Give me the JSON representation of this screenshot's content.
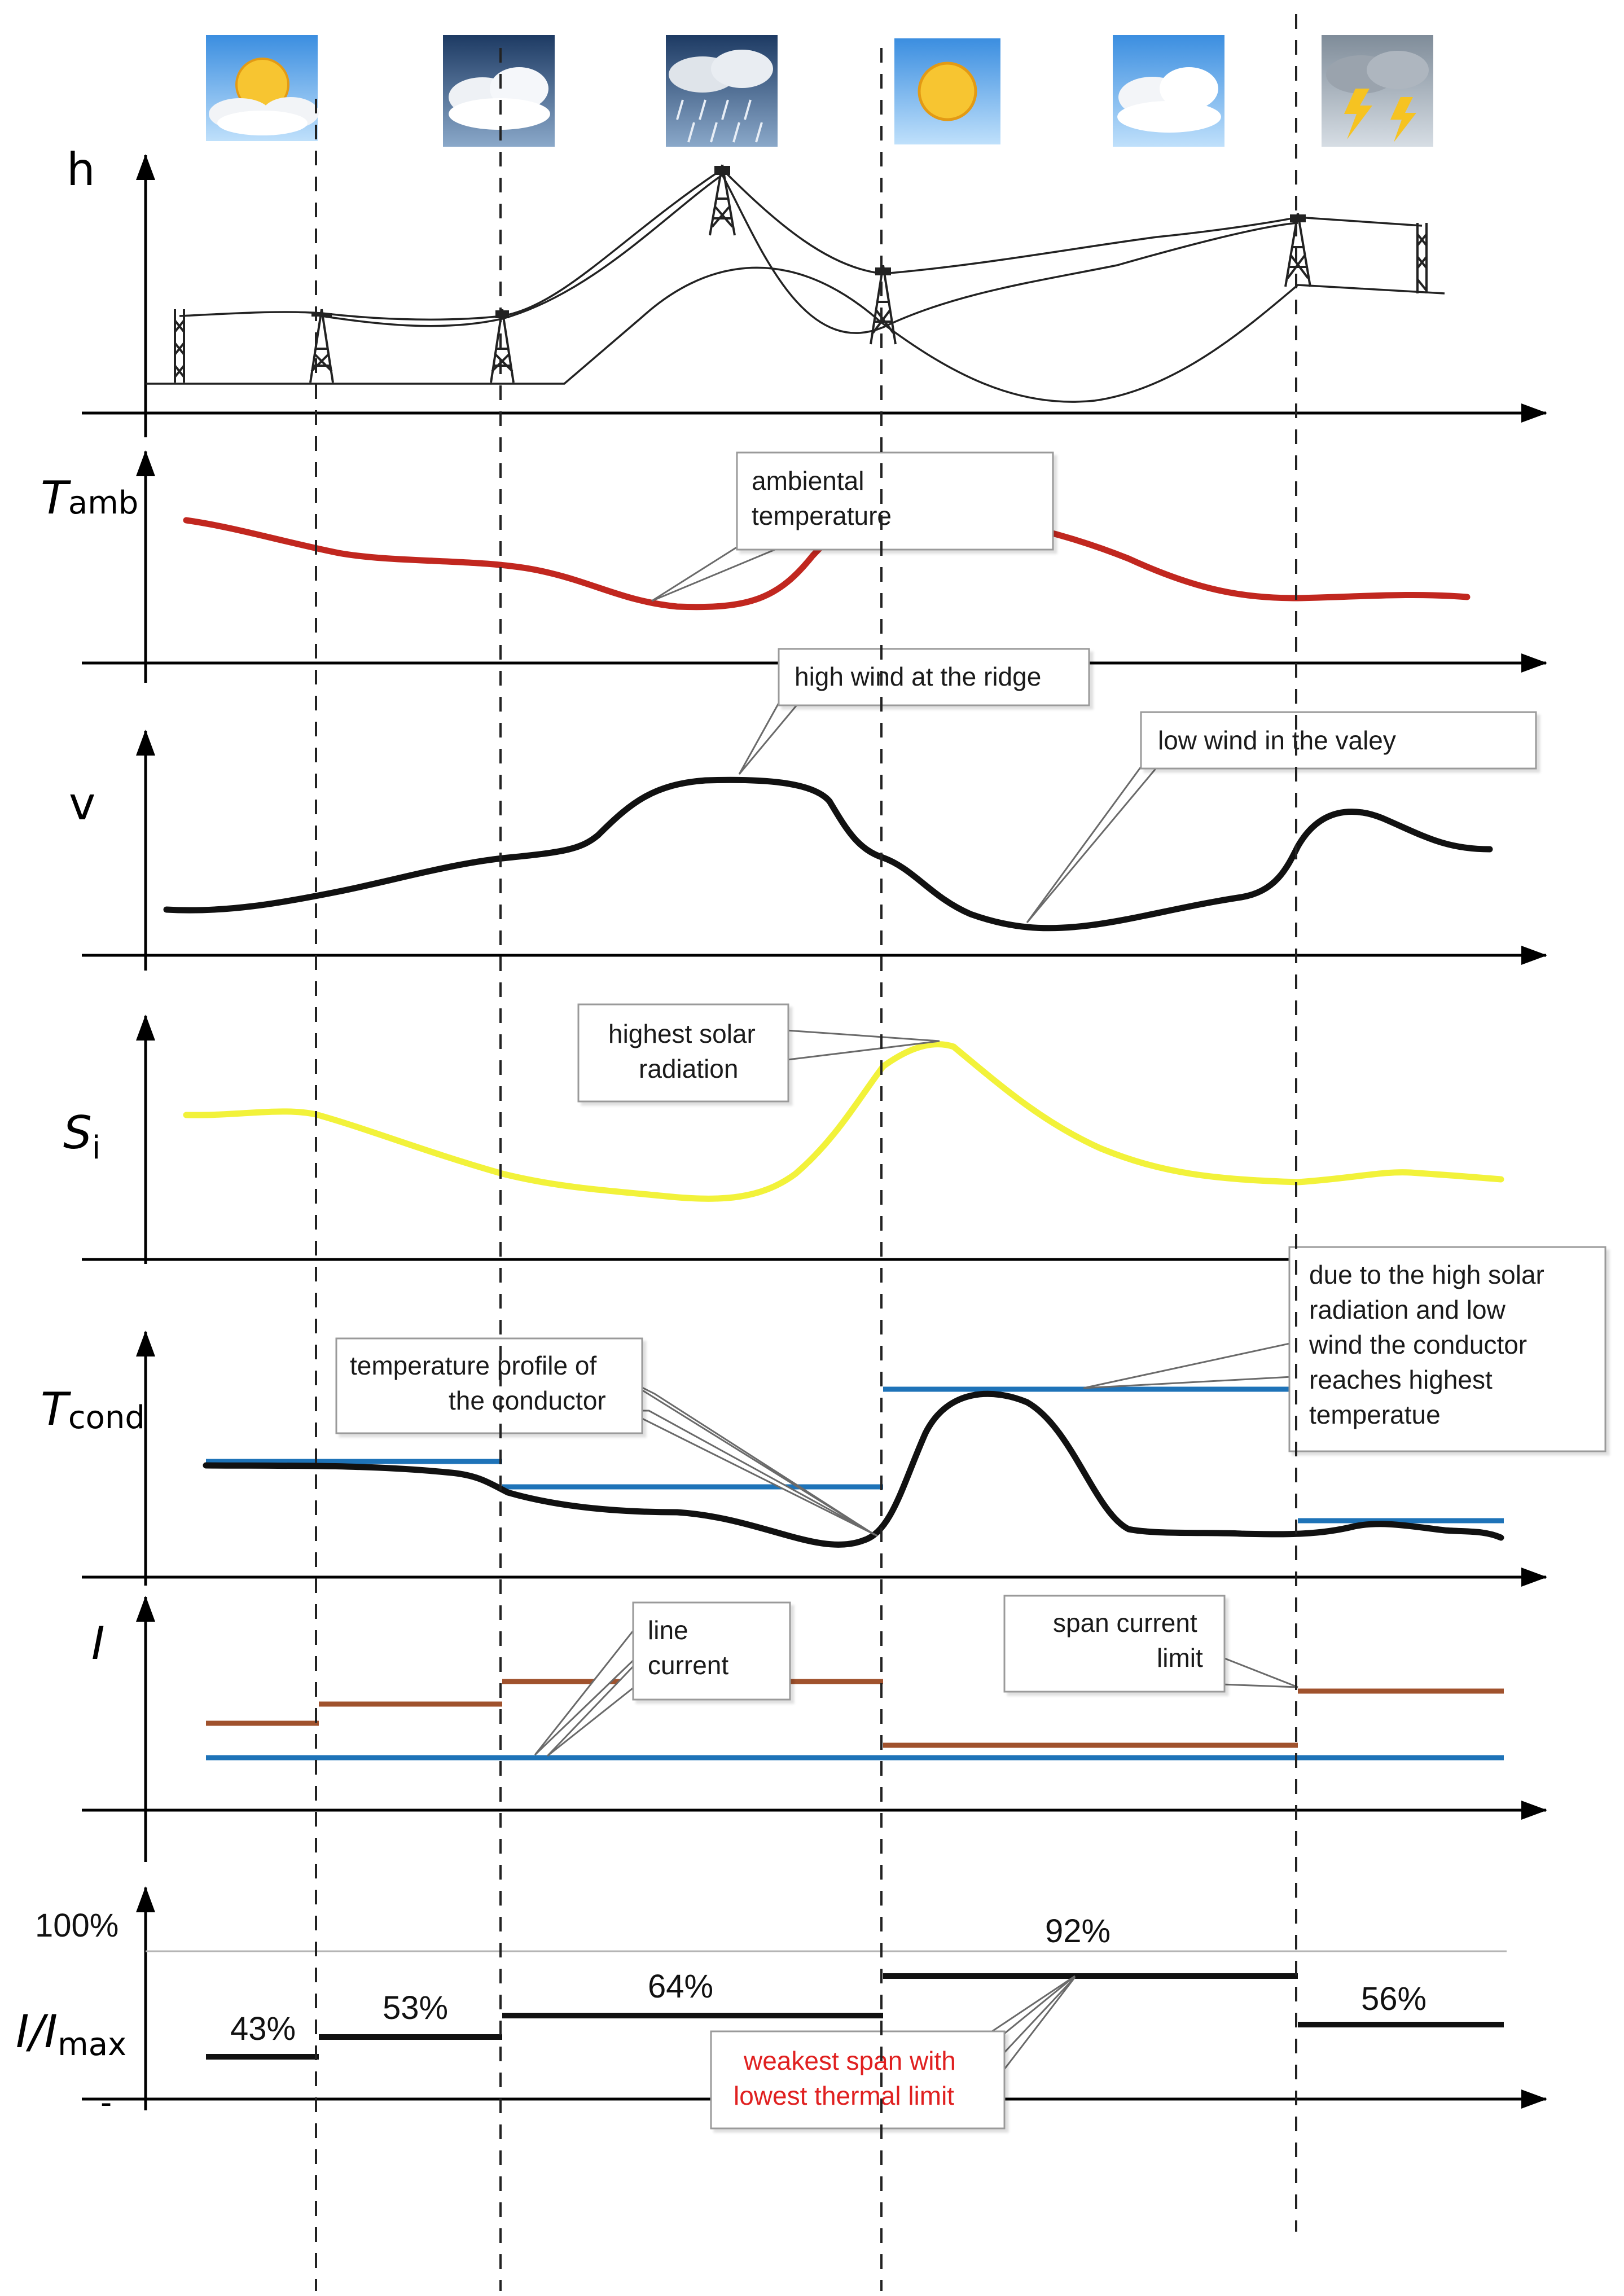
{
  "colors": {
    "ambient": "#c1271f",
    "wind": "#111111",
    "solar": "#f2f23a",
    "conductor": "#111111",
    "span_temp": "#1e73b8",
    "span_limit": "#a0522d",
    "line_current": "#1e73b8",
    "ratio": "#111111",
    "highlight_text": "#e02020"
  },
  "weather_icons": [
    "sun-cloud-icon",
    "cloud-icon",
    "rain-icon",
    "sun-icon",
    "cloud-icon",
    "storm-icon"
  ],
  "axes": {
    "h": "h",
    "tamb_main": "T",
    "tamb_sub": "amb",
    "v": "v",
    "si_main": "S",
    "si_sub": "i",
    "tcond_main": "T",
    "tcond_sub": "cond",
    "i": "I",
    "ratio_main": "I/I",
    "ratio_sub": "max",
    "hundred": "100%",
    "dash": "-"
  },
  "annotations": {
    "ambient_1": "ambiental",
    "ambient_2": "temperature",
    "high_wind": "high wind at the ridge",
    "low_wind": "low wind in the valey",
    "solar_1": "highest solar",
    "solar_2": "radiation",
    "temp_profile_1": "temperature profile of",
    "temp_profile_2": "the conductor",
    "due_1": "due to the high solar",
    "due_2": "radiation and low",
    "due_3": "wind the conductor",
    "due_4": "reaches highest",
    "due_5": "temperatue",
    "line_current_1": "line",
    "line_current_2": "current",
    "span_limit_1": "span current",
    "span_limit_2": "limit",
    "weakest_1": "weakest span with",
    "weakest_2": "lowest thermal limit"
  },
  "spans": [
    {
      "ratio_label": "43%",
      "ratio": 0.43
    },
    {
      "ratio_label": "53%",
      "ratio": 0.53
    },
    {
      "ratio_label": "64%",
      "ratio": 0.64
    },
    {
      "ratio_label": "92%",
      "ratio": 0.92
    },
    {
      "ratio_label": "56%",
      "ratio": 0.56
    }
  ]
}
